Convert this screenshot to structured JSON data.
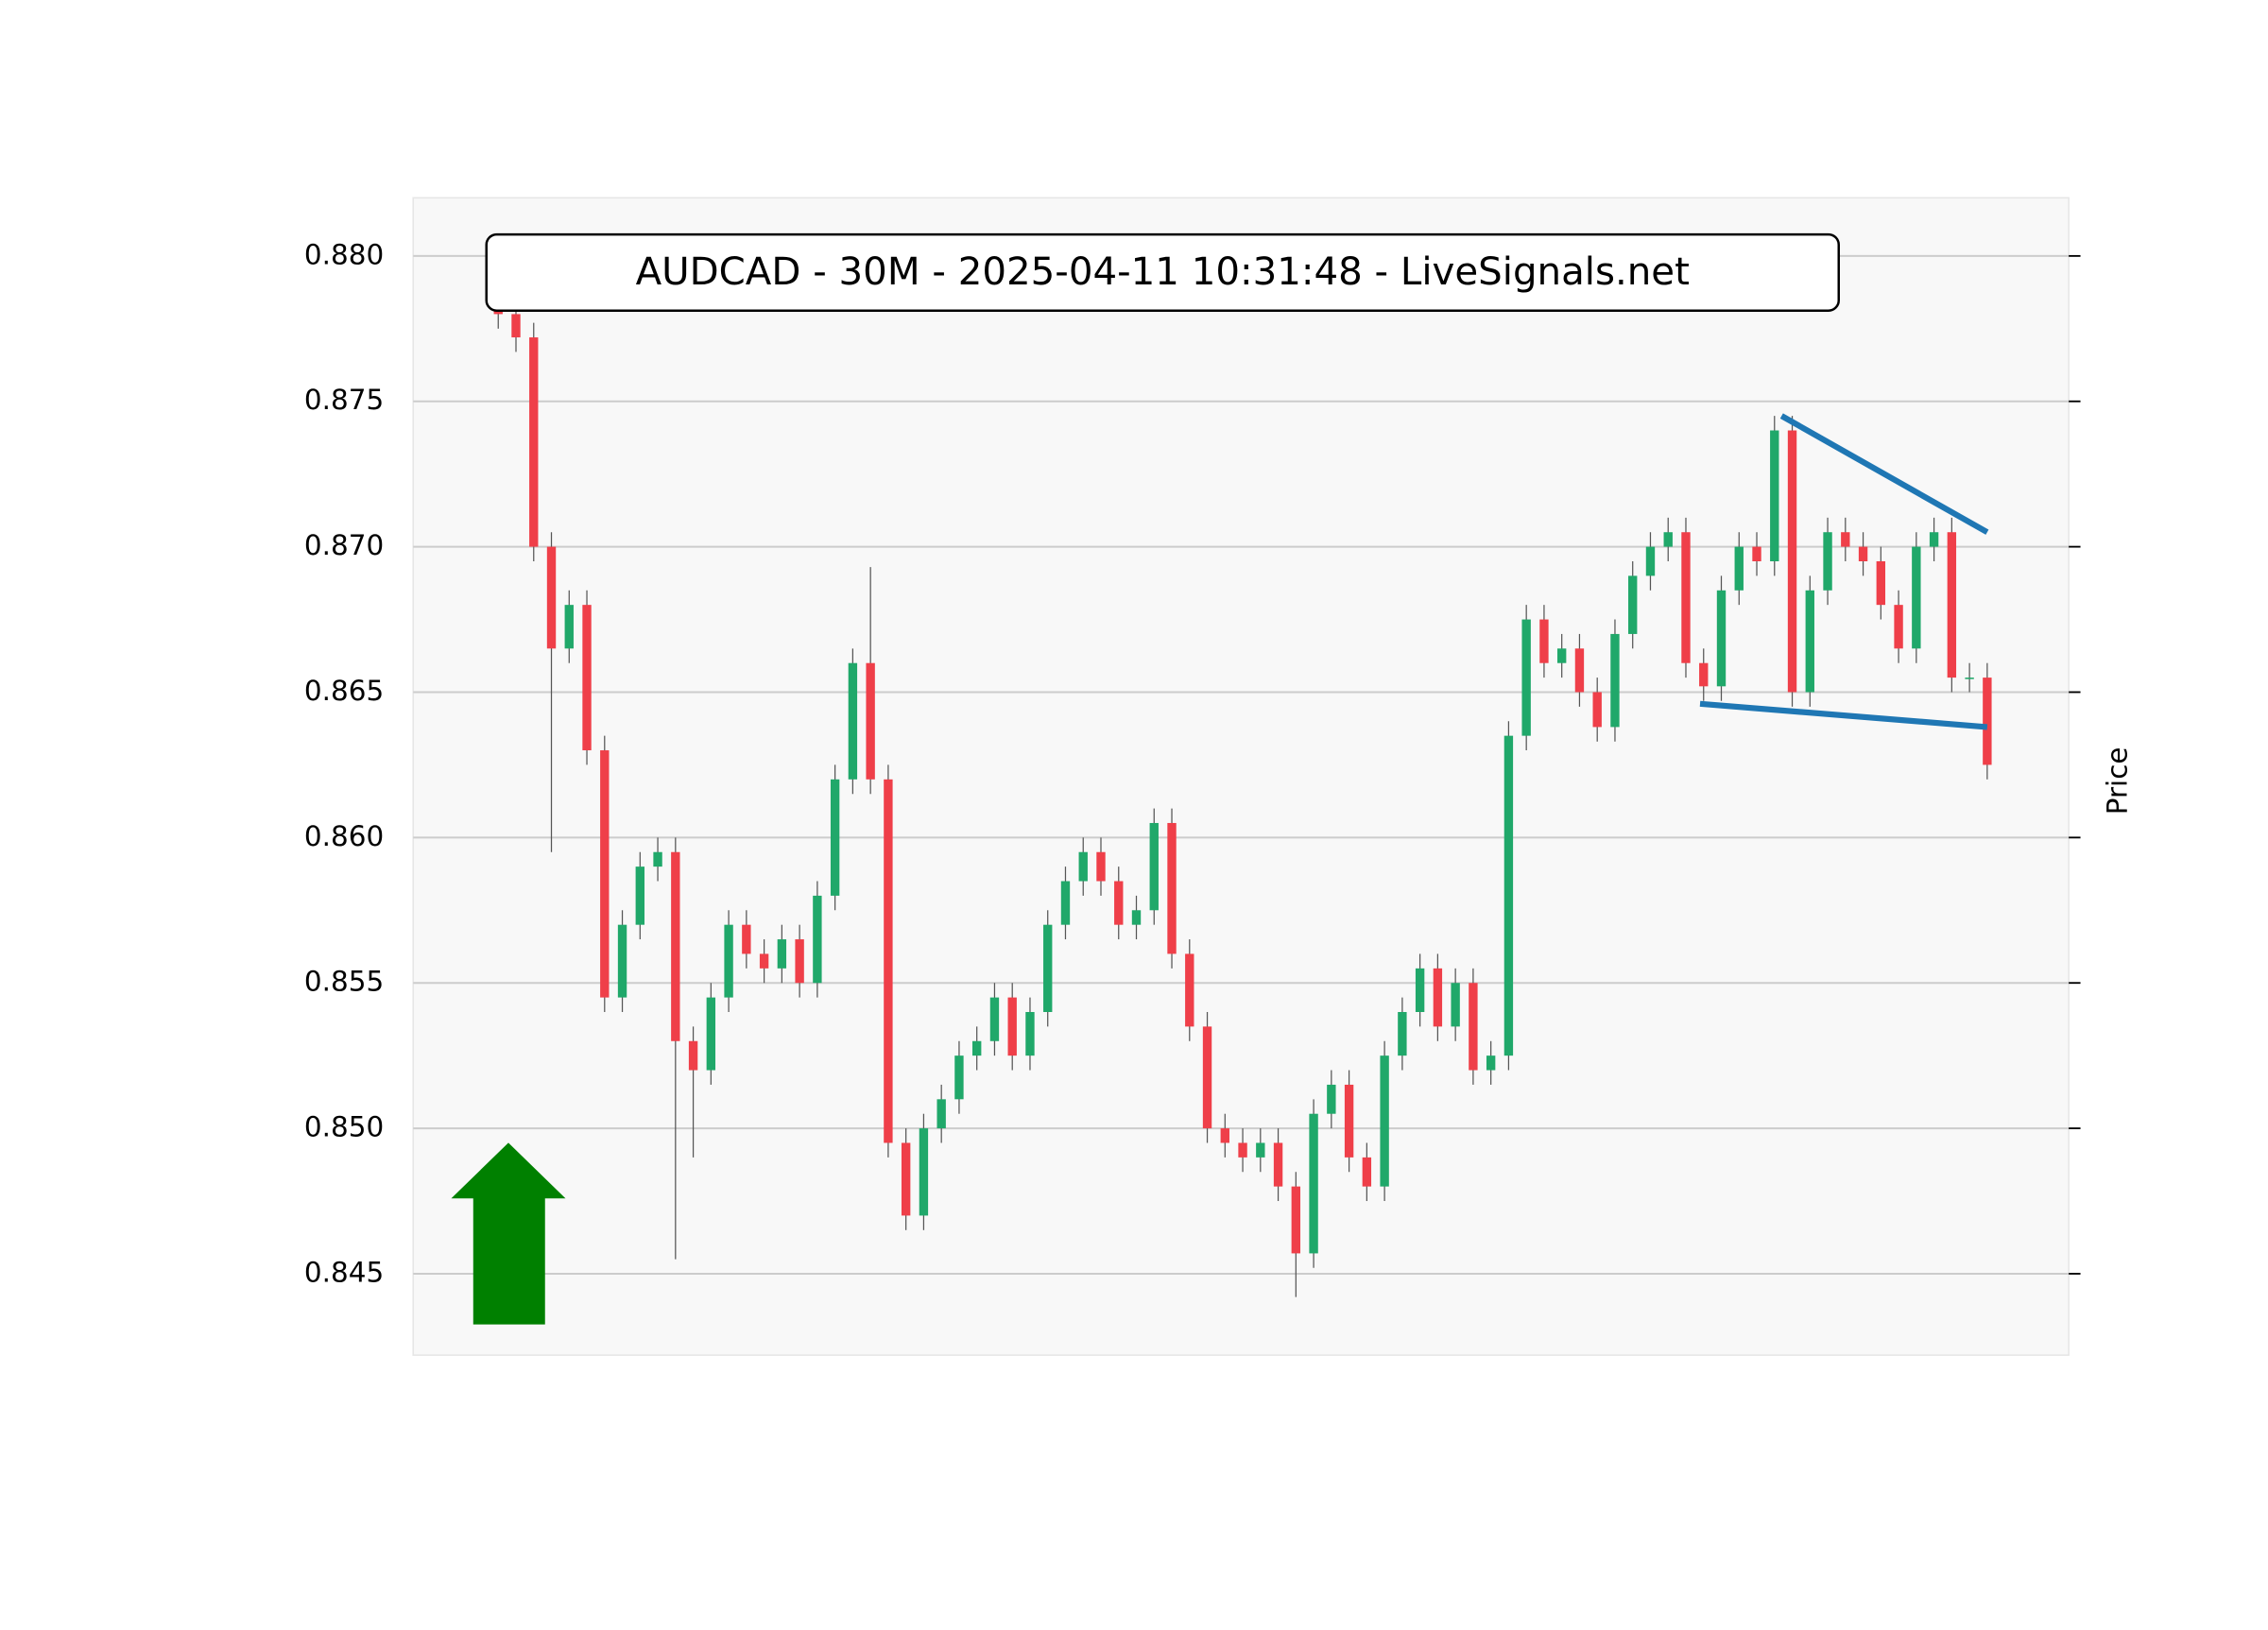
{
  "chart_data": {
    "type": "candlestick",
    "title": "AUDCAD - 30M - 2025-04-11 10:31:48 - LiveSignals.net",
    "y_label": "Price",
    "up_color": "#20a86a",
    "down_color": "#ef3f49",
    "grid": true,
    "xlim": [
      -4.8,
      88.6
    ],
    "ylim": [
      0.8422,
      0.882
    ],
    "yticks": [
      0.845,
      {
        "value": 0.85,
        "label": "0.850"
      },
      0.855,
      {
        "value": 0.86,
        "label": "0.860"
      },
      0.865,
      {
        "value": 0.87,
        "label": "0.870"
      },
      0.875,
      {
        "value": 0.88,
        "label": "0.880"
      }
    ],
    "open": [
      0.8785,
      0.878,
      0.8772,
      0.87,
      0.8665,
      0.868,
      0.863,
      0.8545,
      0.857,
      0.859,
      0.8595,
      0.853,
      0.852,
      0.8545,
      0.857,
      0.856,
      0.8555,
      0.8565,
      0.855,
      0.858,
      0.862,
      0.866,
      0.862,
      0.8495,
      0.847,
      0.85,
      0.851,
      0.8525,
      0.853,
      0.8545,
      0.8525,
      0.854,
      0.857,
      0.8585,
      0.8595,
      0.8585,
      0.857,
      0.8575,
      0.8605,
      0.856,
      0.8535,
      0.85,
      0.8495,
      0.849,
      0.8495,
      0.848,
      0.8457,
      0.8505,
      0.8515,
      0.849,
      0.848,
      0.8525,
      0.854,
      0.8555,
      0.8535,
      0.855,
      0.852,
      0.8525,
      0.8635,
      0.8675,
      0.866,
      0.8665,
      0.865,
      0.8638,
      0.867,
      0.869,
      0.87,
      0.8705,
      0.866,
      0.8652,
      0.8685,
      0.87,
      0.8695,
      0.874,
      0.865,
      0.8685,
      0.8705,
      0.87,
      0.8695,
      0.868,
      0.8665,
      0.87,
      0.8705,
      0.8655,
      0.8655
    ],
    "high": [
      0.879,
      0.8785,
      0.8777,
      0.8705,
      0.8685,
      0.8685,
      0.8635,
      0.8575,
      0.8595,
      0.86,
      0.86,
      0.8535,
      0.855,
      0.8575,
      0.8575,
      0.8565,
      0.857,
      0.857,
      0.8585,
      0.8625,
      0.8665,
      0.8693,
      0.8625,
      0.85,
      0.8505,
      0.8515,
      0.853,
      0.8535,
      0.855,
      0.855,
      0.8545,
      0.8575,
      0.859,
      0.86,
      0.86,
      0.859,
      0.858,
      0.861,
      0.861,
      0.8565,
      0.854,
      0.8505,
      0.85,
      0.85,
      0.85,
      0.8485,
      0.851,
      0.852,
      0.852,
      0.8495,
      0.853,
      0.8545,
      0.856,
      0.856,
      0.8555,
      0.8555,
      0.853,
      0.864,
      0.868,
      0.868,
      0.867,
      0.867,
      0.8655,
      0.8675,
      0.8695,
      0.8705,
      0.871,
      0.871,
      0.8665,
      0.869,
      0.8705,
      0.8705,
      0.8745,
      0.8745,
      0.869,
      0.871,
      0.871,
      0.8705,
      0.87,
      0.8685,
      0.8705,
      0.871,
      0.871,
      0.866,
      0.866
    ],
    "low": [
      0.8775,
      0.8767,
      0.8695,
      0.8595,
      0.866,
      0.8625,
      0.854,
      0.854,
      0.8565,
      0.8585,
      0.8455,
      0.849,
      0.8515,
      0.854,
      0.8555,
      0.855,
      0.855,
      0.8545,
      0.8545,
      0.8575,
      0.8615,
      0.8615,
      0.849,
      0.8465,
      0.8465,
      0.8495,
      0.8505,
      0.852,
      0.8525,
      0.852,
      0.852,
      0.8535,
      0.8565,
      0.858,
      0.858,
      0.8565,
      0.8565,
      0.857,
      0.8555,
      0.853,
      0.8495,
      0.849,
      0.8485,
      0.8485,
      0.8475,
      0.8442,
      0.8452,
      0.85,
      0.8485,
      0.8475,
      0.8475,
      0.852,
      0.8535,
      0.853,
      0.853,
      0.8515,
      0.8515,
      0.852,
      0.863,
      0.8655,
      0.8655,
      0.8645,
      0.8633,
      0.8633,
      0.8665,
      0.8685,
      0.8695,
      0.8655,
      0.8647,
      0.8647,
      0.868,
      0.869,
      0.869,
      0.8645,
      0.8645,
      0.868,
      0.8695,
      0.869,
      0.8675,
      0.866,
      0.866,
      0.8695,
      0.865,
      0.865,
      0.862
    ],
    "close": [
      0.878,
      0.8772,
      0.87,
      0.8665,
      0.868,
      0.863,
      0.8545,
      0.857,
      0.859,
      0.8595,
      0.853,
      0.852,
      0.8545,
      0.857,
      0.856,
      0.8555,
      0.8565,
      0.855,
      0.858,
      0.862,
      0.866,
      0.862,
      0.8495,
      0.847,
      0.85,
      0.851,
      0.8525,
      0.853,
      0.8545,
      0.8525,
      0.854,
      0.857,
      0.8585,
      0.8595,
      0.8585,
      0.857,
      0.8575,
      0.8605,
      0.856,
      0.8535,
      0.85,
      0.8495,
      0.849,
      0.8495,
      0.848,
      0.8457,
      0.8505,
      0.8515,
      0.849,
      0.848,
      0.8525,
      0.854,
      0.8555,
      0.8535,
      0.855,
      0.852,
      0.8525,
      0.8635,
      0.8675,
      0.866,
      0.8665,
      0.865,
      0.8638,
      0.867,
      0.869,
      0.87,
      0.8705,
      0.866,
      0.8652,
      0.8685,
      0.87,
      0.8695,
      0.874,
      0.865,
      0.8685,
      0.8705,
      0.87,
      0.8695,
      0.868,
      0.8665,
      0.87,
      0.8705,
      0.8655,
      0.8655,
      0.8625
    ],
    "trendlines": [
      {
        "x": [
          72.4,
          84
        ],
        "y": [
          0.8745,
          0.8705
        ],
        "color": "#1f77b4"
      },
      {
        "x": [
          67.8,
          84
        ],
        "y": [
          0.8646,
          0.8638
        ],
        "color": "#1f77b4"
      }
    ]
  }
}
